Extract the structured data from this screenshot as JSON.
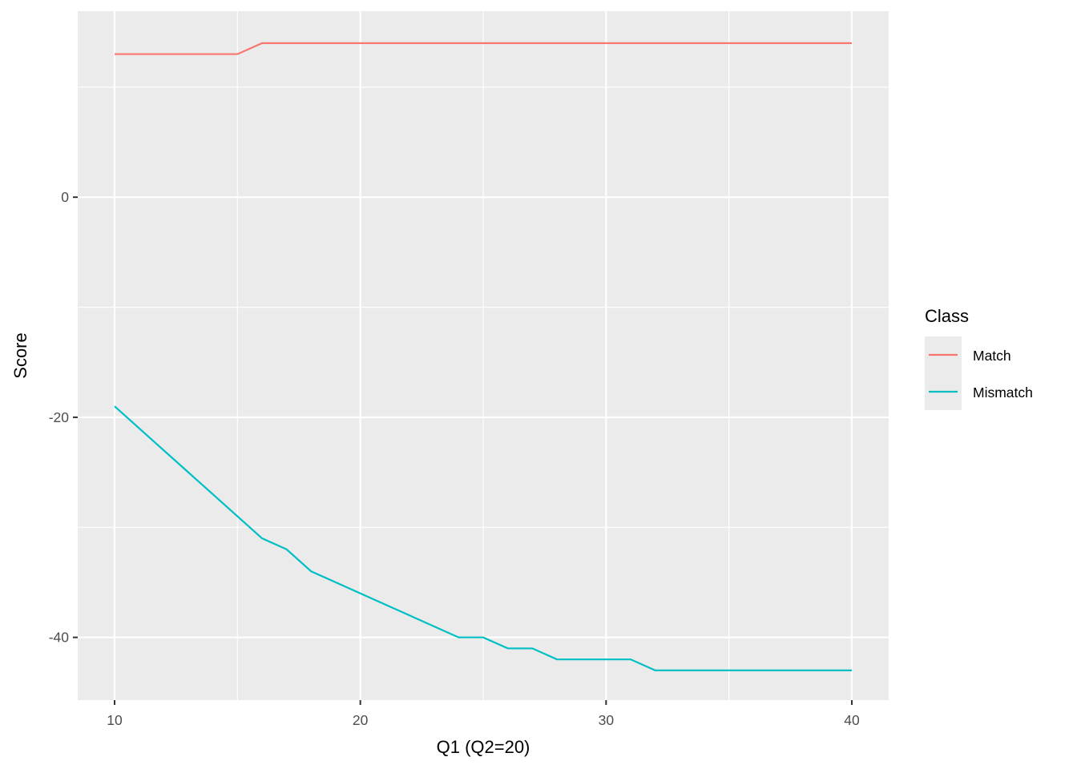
{
  "chart_data": {
    "type": "line",
    "title": "",
    "xlabel": "Q1 (Q2=20)",
    "ylabel": "Score",
    "xlim": [
      8.5,
      41.5
    ],
    "ylim": [
      -45.7,
      16.9
    ],
    "x_ticks": [
      10,
      20,
      30,
      40
    ],
    "y_ticks": [
      0,
      -20,
      -40
    ],
    "x_minor": [
      15,
      25,
      35
    ],
    "y_minor": [
      10,
      -10,
      -30
    ],
    "grid": true,
    "legend": {
      "title": "Class",
      "placement": "right"
    },
    "x": [
      10,
      11,
      12,
      13,
      14,
      15,
      16,
      17,
      18,
      19,
      20,
      21,
      22,
      23,
      24,
      25,
      26,
      27,
      28,
      29,
      30,
      31,
      32,
      33,
      34,
      35,
      36,
      37,
      38,
      39,
      40
    ],
    "series": [
      {
        "name": "Match",
        "color": "#F8766D",
        "values": [
          13,
          13,
          13,
          13,
          13,
          13,
          14,
          14,
          14,
          14,
          14,
          14,
          14,
          14,
          14,
          14,
          14,
          14,
          14,
          14,
          14,
          14,
          14,
          14,
          14,
          14,
          14,
          14,
          14,
          14,
          14
        ]
      },
      {
        "name": "Mismatch",
        "color": "#00BFC4",
        "values": [
          -19,
          -21,
          -23,
          -25,
          -27,
          -29,
          -31,
          -32,
          -34,
          -35,
          -36,
          -37,
          -38,
          -39,
          -40,
          -40,
          -41,
          -41,
          -42,
          -42,
          -42,
          -42,
          -43,
          -43,
          -43,
          -43,
          -43,
          -43,
          -43,
          -43,
          -43
        ]
      }
    ]
  }
}
